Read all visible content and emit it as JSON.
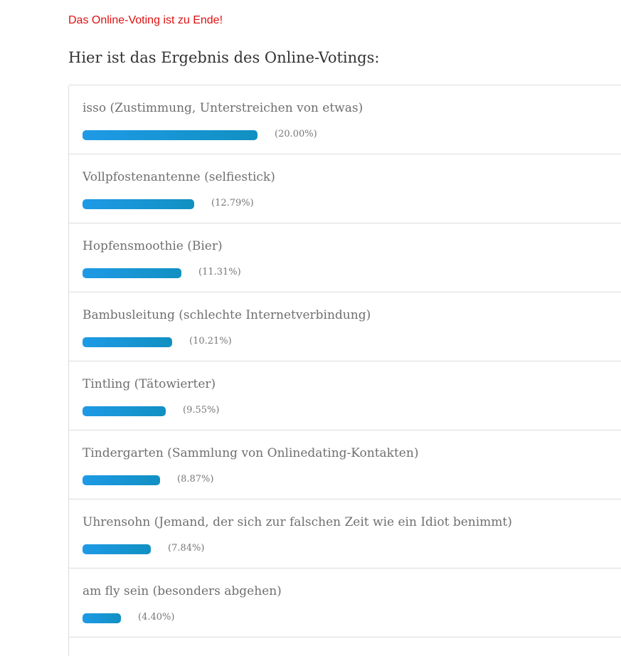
{
  "notice": "Das Online-Voting ist zu Ende!",
  "heading": "Hier ist das Ergebnis des Online-Votings:",
  "colors": {
    "notice": "#e01010",
    "bar_start": "#1e9ae6",
    "bar_end": "#1190c2",
    "text": "#6f6f6f",
    "border": "#dcdcdc"
  },
  "results": [
    {
      "label": "isso (Zustimmung, Unterstreichen von etwas)",
      "percent_text": "(20.00%)",
      "percent": 20.0
    },
    {
      "label": "Vollpfostenantenne (selfiestick)",
      "percent_text": "(12.79%)",
      "percent": 12.79
    },
    {
      "label": "Hopfensmoothie (Bier)",
      "percent_text": "(11.31%)",
      "percent": 11.31
    },
    {
      "label": "Bambusleitung (schlechte Internetverbindung)",
      "percent_text": "(10.21%)",
      "percent": 10.21
    },
    {
      "label": "Tintling (Tätowierter)",
      "percent_text": "(9.55%)",
      "percent": 9.55
    },
    {
      "label": "Tindergarten (Sammlung von Onlinedating-Kontakten)",
      "percent_text": "(8.87%)",
      "percent": 8.87
    },
    {
      "label": "Uhrensohn (Jemand, der sich zur falschen Zeit wie ein Idiot benimmt)",
      "percent_text": "(7.84%)",
      "percent": 7.84
    },
    {
      "label": "am fly sein (besonders abgehen)",
      "percent_text": "(4.40%)",
      "percent": 4.4
    }
  ]
}
